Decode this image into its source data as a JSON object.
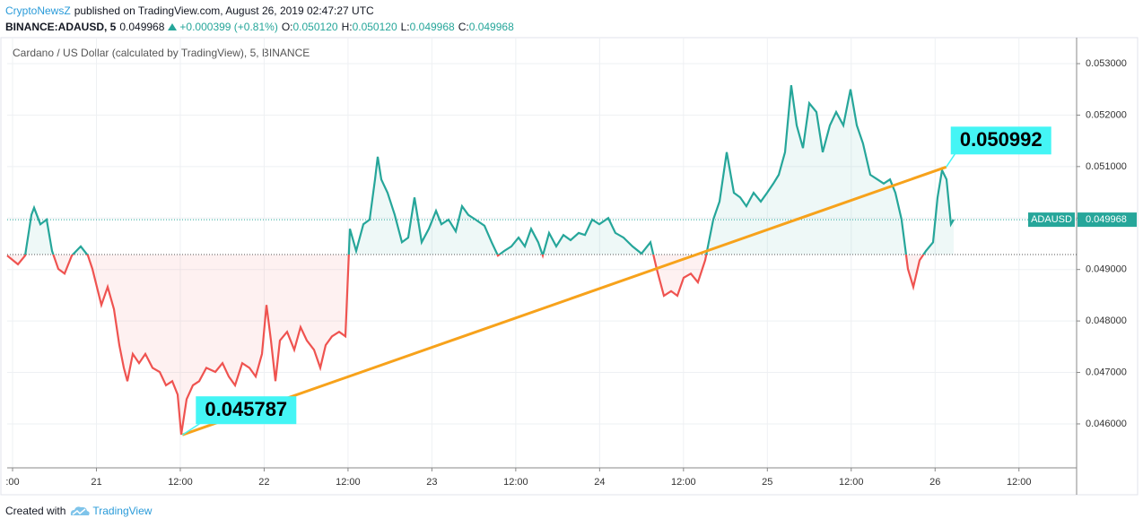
{
  "header": {
    "author": "CryptoNewsZ",
    "published": "published on TradingView.com, August 26, 2019 02:47:27 UTC",
    "symbol": "BINANCE:ADAUSD, 5",
    "last": "0.049968",
    "change": "+0.000399 (+0.81%)",
    "ohlc": [
      {
        "label": "O:",
        "value": "0.050120"
      },
      {
        "label": "H:",
        "value": "0.050120"
      },
      {
        "label": "L:",
        "value": "0.049968"
      },
      {
        "label": "C:",
        "value": "0.049968"
      }
    ]
  },
  "chart_data": {
    "type": "line",
    "title": "Cardano / US Dollar (calculated by TradingView), 5, BINANCE",
    "x": [
      11.23,
      12.77,
      13.8,
      14.7,
      15.08,
      15.98,
      16.88,
      17.65,
      18.55,
      19.45,
      20.47,
      21.76,
      22.78,
      23.42,
      24.07,
      24.71,
      25.61,
      26.51,
      27.28,
      27.92,
      28.43,
      29.2,
      30.1,
      31.0,
      32.03,
      33.05,
      33.95,
      34.85,
      35.62,
      36.13,
      36.9,
      37.8,
      38.7,
      39.73,
      41.01,
      42.04,
      42.94,
      43.84,
      44.86,
      45.89,
      46.79,
      47.69,
      48.33,
      48.97,
      49.61,
      50.25,
      51.28,
      52.31,
      53.21,
      54.1,
      55.13,
      56.03,
      56.8,
      57.7,
      58.73,
      59.63,
      60.27,
      61.17,
      62.19,
      63.09,
      63.86,
      64.25,
      64.76,
      65.66,
      66.69,
      67.71,
      68.61,
      69.51,
      70.54,
      71.56,
      72.59,
      73.36,
      74.39,
      75.41,
      76.31,
      77.21,
      78.24,
      79.52,
      80.55,
      81.45,
      82.35,
      83.37,
      84.4,
      85.3,
      86.2,
      87.22,
      87.87,
      88.77,
      89.79,
      90.82,
      91.85,
      93.0,
      93.9,
      94.93,
      95.95,
      97.24,
      98.26,
      99.42,
      100.7,
      101.99,
      103.27,
      104.17,
      105.2,
      106.22,
      107.12,
      108.02,
      109.05,
      110.07,
      111.1,
      112.26,
      113.16,
      114.18,
      115.21,
      116.11,
      117.0,
      118.03,
      119.06,
      119.96,
      120.86,
      121.63,
      122.53,
      123.42,
      124.2,
      125.09,
      125.99,
      127.02,
      127.92,
      128.95,
      129.84,
      130.87,
      131.9,
      132.8,
      133.69,
      134.72,
      135.75,
      136.65,
      137.55,
      138.32,
      139.21,
      140.11,
      140.88,
      141.78,
      142.68,
      143.71,
      144.35,
      144.99,
      145.63,
      146.27,
      146.66
    ],
    "series": [
      {
        "name": "ADAUSD",
        "color": "#26a69a",
        "color_below": "#ef5350",
        "values": [
          0.04927,
          0.0491,
          0.04927,
          0.05006,
          0.0502,
          0.04988,
          0.04997,
          0.04936,
          0.04901,
          0.04892,
          0.04927,
          0.04945,
          0.04927,
          0.04901,
          0.04866,
          0.04831,
          0.04866,
          0.04823,
          0.04753,
          0.04709,
          0.04683,
          0.04736,
          0.04718,
          0.04736,
          0.04709,
          0.04701,
          0.04675,
          0.04683,
          0.04657,
          0.04579,
          0.04648,
          0.04675,
          0.04683,
          0.04709,
          0.04701,
          0.04718,
          0.04692,
          0.04675,
          0.04718,
          0.04709,
          0.04692,
          0.04736,
          0.04831,
          0.04762,
          0.04683,
          0.04762,
          0.04779,
          0.04744,
          0.04788,
          0.04762,
          0.04744,
          0.04709,
          0.04753,
          0.0477,
          0.04779,
          0.0477,
          0.04979,
          0.04936,
          0.04988,
          0.04997,
          0.05075,
          0.05119,
          0.05075,
          0.05049,
          0.05006,
          0.04953,
          0.04962,
          0.0504,
          0.04953,
          0.04979,
          0.05014,
          0.04988,
          0.04997,
          0.04974,
          0.05023,
          0.05006,
          0.04997,
          0.04985,
          0.04953,
          0.04927,
          0.04936,
          0.04945,
          0.04962,
          0.04945,
          0.04979,
          0.04953,
          0.04927,
          0.04971,
          0.04945,
          0.04967,
          0.04957,
          0.04971,
          0.04967,
          0.04997,
          0.04988,
          0.05,
          0.04971,
          0.04962,
          0.04945,
          0.04931,
          0.04953,
          0.04901,
          0.04849,
          0.04858,
          0.04849,
          0.04884,
          0.04892,
          0.04875,
          0.04918,
          0.04997,
          0.05032,
          0.05128,
          0.05049,
          0.0504,
          0.05023,
          0.05049,
          0.05032,
          0.05049,
          0.05067,
          0.05084,
          0.05128,
          0.05258,
          0.0518,
          0.05136,
          0.05223,
          0.05206,
          0.05128,
          0.0518,
          0.05206,
          0.0518,
          0.0525,
          0.0518,
          0.05145,
          0.05084,
          0.05075,
          0.05067,
          0.05075,
          0.05049,
          0.04997,
          0.04901,
          0.04866,
          0.04918,
          0.04936,
          0.04953,
          0.0504,
          0.05093,
          0.05075,
          0.04988,
          0.049968
        ]
      }
    ],
    "baseline": 0.04929,
    "last_price": {
      "label": "ADAUSD",
      "value": 0.049968,
      "value_label": "0.049968",
      "color": "#26a69a"
    },
    "trendline": {
      "x": [
        36.3,
        145.6
      ],
      "values": [
        0.045787,
        0.050992
      ],
      "value_labels": [
        "0.045787",
        "0.050992"
      ],
      "color": "#f7a21b",
      "label_color": "#44f5f5"
    },
    "xlim": [
      11.23,
      164.25
    ],
    "ylim": [
      0.045146,
      0.053505
    ],
    "xticks": [
      {
        "value": 12,
        "label": ":00"
      },
      {
        "value": 24,
        "label": "21"
      },
      {
        "value": 36,
        "label": "12:00"
      },
      {
        "value": 48,
        "label": "22"
      },
      {
        "value": 60,
        "label": "12:00"
      },
      {
        "value": 72,
        "label": "23"
      },
      {
        "value": 84,
        "label": "12:00"
      },
      {
        "value": 96,
        "label": "24"
      },
      {
        "value": 108,
        "label": "12:00"
      },
      {
        "value": 120,
        "label": "25"
      },
      {
        "value": 132,
        "label": "12:00"
      },
      {
        "value": 144,
        "label": "26"
      },
      {
        "value": 156,
        "label": "12:00"
      }
    ],
    "yticks": [
      {
        "value": 0.046,
        "label": "0.046000"
      },
      {
        "value": 0.047,
        "label": "0.047000"
      },
      {
        "value": 0.048,
        "label": "0.048000"
      },
      {
        "value": 0.049,
        "label": "0.049000"
      },
      {
        "value": 0.05,
        "label": "0.050000"
      },
      {
        "value": 0.051,
        "label": "0.051000"
      },
      {
        "value": 0.052,
        "label": "0.052000"
      },
      {
        "value": 0.053,
        "label": "0.053000"
      }
    ],
    "grid": true
  },
  "footer": {
    "created": "Created with",
    "brand": "TradingView"
  }
}
